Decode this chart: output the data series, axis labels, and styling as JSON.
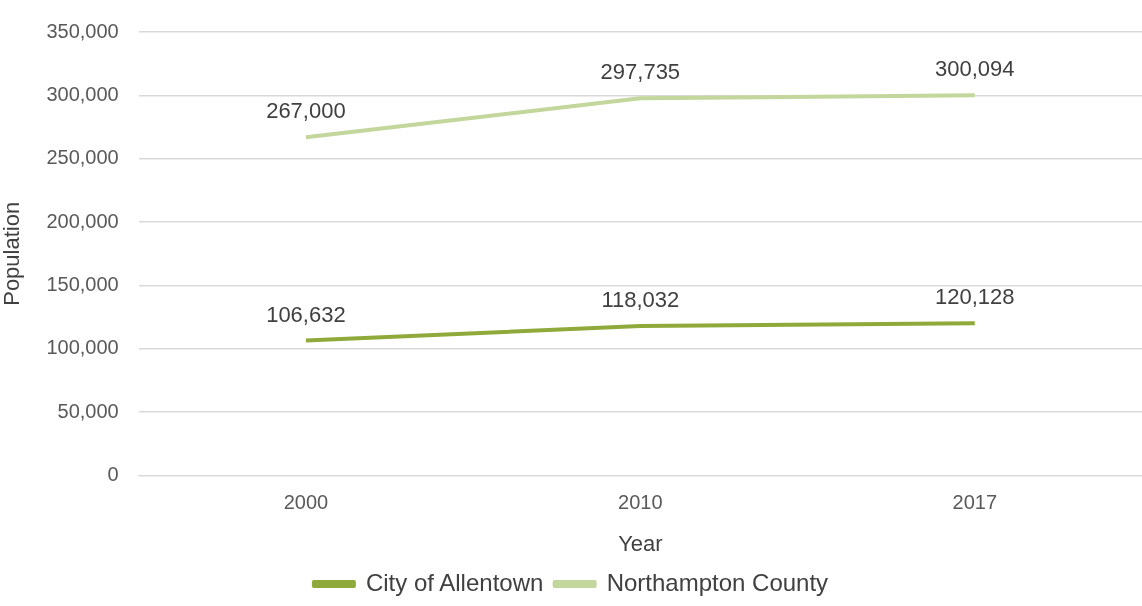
{
  "chart_data": {
    "type": "line",
    "xlabel": "Year",
    "ylabel": "Population",
    "categories": [
      "2000",
      "2010",
      "2017"
    ],
    "series": [
      {
        "name": "City of Allentown",
        "color": "#8faa3b",
        "values": [
          106632,
          118032,
          120128
        ],
        "value_labels": [
          "106,632",
          "118,032",
          "120,128"
        ]
      },
      {
        "name": "Northampton County",
        "color": "#c3d69b",
        "values": [
          267000,
          297735,
          300094
        ],
        "value_labels": [
          "267,000",
          "297,735",
          "300,094"
        ]
      }
    ],
    "ylim": [
      0,
      350000
    ],
    "yticks": [
      0,
      {
        "value": 50000,
        "label": "50,000"
      },
      {
        "value": 100000,
        "label": "100,000"
      },
      {
        "value": 150000,
        "label": "150,000"
      },
      {
        "value": 200000,
        "label": "200,000"
      },
      {
        "value": 250000,
        "label": "250,000"
      },
      {
        "value": 300000,
        "label": "300,000"
      },
      {
        "value": 350000,
        "label": "350,000"
      }
    ],
    "grid": "y",
    "legend": "bottom",
    "marker": "none",
    "line_style": "solid"
  }
}
